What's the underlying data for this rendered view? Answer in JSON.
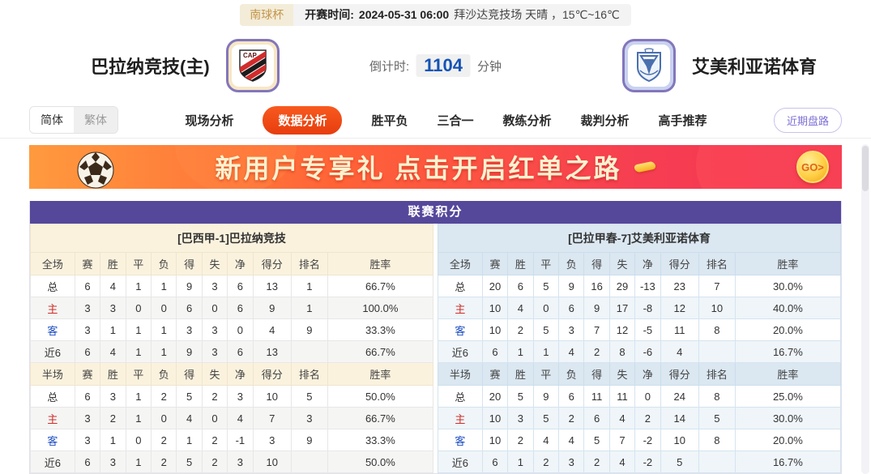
{
  "top_bar": {
    "league_tag": "南球杯",
    "kickoff_label": "开赛时间:",
    "kickoff_time": "2024-05-31 06:00",
    "venue_weather": "拜沙达竞技场 天晴 ，15℃~16℃"
  },
  "header": {
    "home_team": "巴拉纳竞技(主)",
    "away_team": "艾美利亚诺体育",
    "home_logo_text": "CAP",
    "countdown_label": "倒计时:",
    "countdown_value": "1104",
    "countdown_unit": "分钟"
  },
  "nav": {
    "lang_simplified": "简体",
    "lang_traditional": "繁体",
    "tabs": [
      {
        "label": "现场分析",
        "active": false
      },
      {
        "label": "数据分析",
        "active": true
      },
      {
        "label": "胜平负",
        "active": false
      },
      {
        "label": "三合一",
        "active": false
      },
      {
        "label": "教练分析",
        "active": false
      },
      {
        "label": "裁判分析",
        "active": false
      },
      {
        "label": "高手推荐",
        "active": false
      }
    ],
    "recent_button": "近期盘路"
  },
  "banner": {
    "title": "新用户专享礼  点击开启红单之路",
    "go_label": "GO>"
  },
  "colors": {
    "table_title_bg": "#55489b",
    "home_header_bg": "#fbf2de",
    "away_header_bg": "#dbe7f1",
    "active_tab_bg": "#e73d0e",
    "home_label_red": "#cf2d27",
    "away_label_blue": "#1d4ec2",
    "countdown_blue": "#1553b5"
  },
  "chart_data": {
    "type": "table",
    "title": "联赛积分",
    "columns_full": [
      "全场",
      "赛",
      "胜",
      "平",
      "负",
      "得",
      "失",
      "净",
      "得分",
      "排名",
      "胜率"
    ],
    "columns_half": [
      "半场",
      "赛",
      "胜",
      "平",
      "负",
      "得",
      "失",
      "净",
      "得分",
      "排名",
      "胜率"
    ],
    "home": {
      "header": "[巴西甲-1]巴拉纳竞技",
      "full": [
        {
          "label": "总",
          "color": "",
          "values": [
            "6",
            "4",
            "1",
            "1",
            "9",
            "3",
            "6",
            "13",
            "1",
            "66.7%"
          ]
        },
        {
          "label": "主",
          "color": "red",
          "values": [
            "3",
            "3",
            "0",
            "0",
            "6",
            "0",
            "6",
            "9",
            "1",
            "100.0%"
          ]
        },
        {
          "label": "客",
          "color": "blue",
          "values": [
            "3",
            "1",
            "1",
            "1",
            "3",
            "3",
            "0",
            "4",
            "9",
            "33.3%"
          ]
        },
        {
          "label": "近6",
          "color": "",
          "values": [
            "6",
            "4",
            "1",
            "1",
            "9",
            "3",
            "6",
            "13",
            "",
            "66.7%"
          ]
        }
      ],
      "half": [
        {
          "label": "总",
          "color": "",
          "values": [
            "6",
            "3",
            "1",
            "2",
            "5",
            "2",
            "3",
            "10",
            "5",
            "50.0%"
          ]
        },
        {
          "label": "主",
          "color": "red",
          "values": [
            "3",
            "2",
            "1",
            "0",
            "4",
            "0",
            "4",
            "7",
            "3",
            "66.7%"
          ]
        },
        {
          "label": "客",
          "color": "blue",
          "values": [
            "3",
            "1",
            "0",
            "2",
            "1",
            "2",
            "-1",
            "3",
            "9",
            "33.3%"
          ]
        },
        {
          "label": "近6",
          "color": "",
          "values": [
            "6",
            "3",
            "1",
            "2",
            "5",
            "2",
            "3",
            "10",
            "",
            "50.0%"
          ]
        }
      ]
    },
    "away": {
      "header": "[巴拉甲春-7]艾美利亚诺体育",
      "full": [
        {
          "label": "总",
          "color": "",
          "values": [
            "20",
            "6",
            "5",
            "9",
            "16",
            "29",
            "-13",
            "23",
            "7",
            "30.0%"
          ]
        },
        {
          "label": "主",
          "color": "red",
          "values": [
            "10",
            "4",
            "0",
            "6",
            "9",
            "17",
            "-8",
            "12",
            "10",
            "40.0%"
          ]
        },
        {
          "label": "客",
          "color": "blue",
          "values": [
            "10",
            "2",
            "5",
            "3",
            "7",
            "12",
            "-5",
            "11",
            "8",
            "20.0%"
          ]
        },
        {
          "label": "近6",
          "color": "",
          "values": [
            "6",
            "1",
            "1",
            "4",
            "2",
            "8",
            "-6",
            "4",
            "",
            "16.7%"
          ]
        }
      ],
      "half": [
        {
          "label": "总",
          "color": "",
          "values": [
            "20",
            "5",
            "9",
            "6",
            "11",
            "11",
            "0",
            "24",
            "8",
            "25.0%"
          ]
        },
        {
          "label": "主",
          "color": "red",
          "values": [
            "10",
            "3",
            "5",
            "2",
            "6",
            "4",
            "2",
            "14",
            "5",
            "30.0%"
          ]
        },
        {
          "label": "客",
          "color": "blue",
          "values": [
            "10",
            "2",
            "4",
            "4",
            "5",
            "7",
            "-2",
            "10",
            "8",
            "20.0%"
          ]
        },
        {
          "label": "近6",
          "color": "",
          "values": [
            "6",
            "1",
            "2",
            "3",
            "2",
            "4",
            "-2",
            "5",
            "",
            "16.7%"
          ]
        }
      ]
    }
  }
}
